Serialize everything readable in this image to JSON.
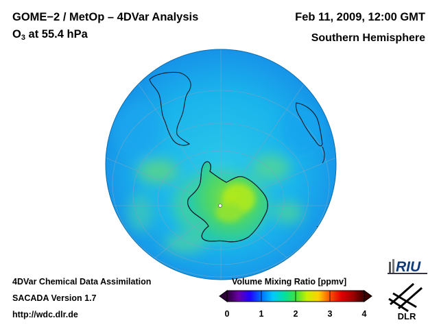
{
  "header": {
    "title_line1": "GOME−2 / MetOp – 4DVar Analysis",
    "species": "O",
    "species_sub": "3",
    "level": " at 55.4 hPa",
    "date": "Feb 11, 2009, 12:00 GMT",
    "region": "Southern Hemisphere"
  },
  "footer": {
    "line1": "4DVar Chemical Data Assimilation",
    "line2": "SACADA Version 1.7",
    "line3": "http://wdc.dlr.de"
  },
  "colorbar": {
    "title": "Volume Mixing Ratio [ppmv]",
    "ticks": [
      "0",
      "1",
      "2",
      "3",
      "4"
    ],
    "min": 0,
    "max": 4,
    "colors": [
      "#2a0036",
      "#6a00a8",
      "#2000ff",
      "#0070ff",
      "#00c8ff",
      "#00e0a0",
      "#40e040",
      "#c8f000",
      "#ffd000",
      "#ff5000",
      "#e00000",
      "#a00000",
      "#3a0000"
    ]
  },
  "logos": {
    "riu": "RIU",
    "dlr": "DLR"
  },
  "map": {
    "projection": "orthographic",
    "center": "South Pole",
    "ocean_color": "#1ab8ea",
    "antarctica_color": "#58d26a"
  }
}
